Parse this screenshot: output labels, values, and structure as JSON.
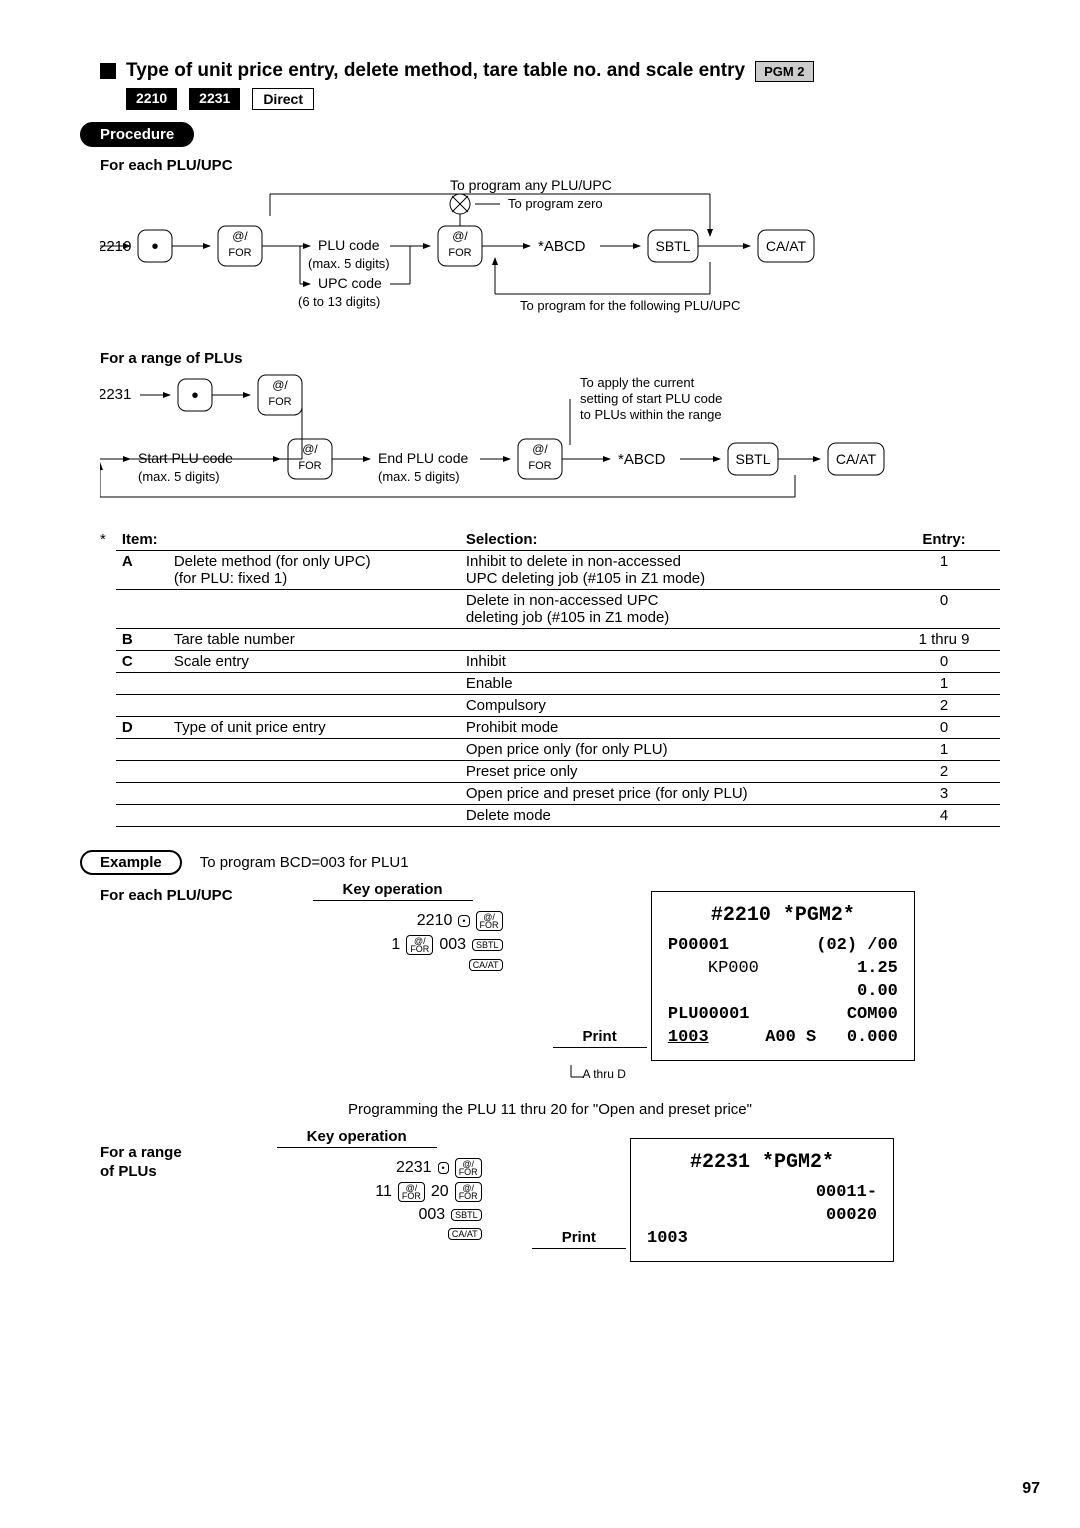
{
  "title": "Type of unit price entry, delete method, tare table no. and scale entry",
  "badges": {
    "pgm": "PGM 2",
    "c1": "2210",
    "c2": "2231",
    "direct": "Direct"
  },
  "labels": {
    "procedure": "Procedure",
    "forEach": "For each PLU/UPC",
    "forRange": "For a range of PLUs",
    "forRange2a": "For a range",
    "forRange2b": "of PLUs",
    "example": "Example",
    "keyop": "Key operation",
    "print": "Print"
  },
  "flow1": {
    "start": "2210",
    "dot": "•",
    "for": "@/",
    "forLabel": "FOR",
    "plu": "PLU code",
    "plu_sub": "(max. 5 digits)",
    "upc": "UPC code",
    "upc_sub": "(6 to 13 digits)",
    "anyLabel": "To program any PLU/UPC",
    "zeroLabel": "To program zero",
    "followLabel": "To program for the following PLU/UPC",
    "abcd": "*ABCD",
    "sbtl": "SBTL",
    "caat": "CA/AT"
  },
  "flow2": {
    "start": "2231",
    "startPlu": "Start PLU code",
    "startPlu_sub": "(max. 5 digits)",
    "endPlu": "End PLU code",
    "endPlu_sub": "(max. 5 digits)",
    "applyLabel1": "To apply the current",
    "applyLabel2": "setting of start PLU code",
    "applyLabel3": "to PLUs within the range",
    "abcd": "*ABCD",
    "sbtl": "SBTL",
    "caat": "CA/AT"
  },
  "table": {
    "headers": {
      "item": "Item:",
      "sel": "Selection:",
      "entry": "Entry:"
    },
    "rows": [
      {
        "id": "A",
        "item": "Delete method (for only UPC)",
        "item2": "(for PLU: fixed 1)",
        "sel": "Inhibit to delete in non-accessed\nUPC deleting job (#105 in Z1 mode)",
        "entry": "1",
        "line": true,
        "bold": true
      },
      {
        "id": "",
        "item": "",
        "item2": "",
        "sel": "Delete in non-accessed UPC\ndeleting job (#105 in Z1 mode)",
        "entry": "0",
        "line": true
      },
      {
        "id": "B",
        "item": "Tare table number",
        "sel": "",
        "entry": "1 thru 9",
        "line": true,
        "bold": true
      },
      {
        "id": "C",
        "item": "Scale entry",
        "sel": "Inhibit",
        "entry": "0",
        "line": true,
        "bold": true
      },
      {
        "id": "",
        "item": "",
        "sel": "Enable",
        "entry": "1",
        "line": true
      },
      {
        "id": "",
        "item": "",
        "sel": "Compulsory",
        "entry": "2",
        "line": true
      },
      {
        "id": "D",
        "item": "Type of unit price entry",
        "sel": "Prohibit mode",
        "entry": "0",
        "line": true,
        "bold": true
      },
      {
        "id": "",
        "item": "",
        "sel": "Open price only (for only PLU)",
        "entry": "1",
        "line": true
      },
      {
        "id": "",
        "item": "",
        "sel": "Preset price only",
        "entry": "2",
        "line": true
      },
      {
        "id": "",
        "item": "",
        "sel": "Open price and preset price (for only PLU)",
        "entry": "3",
        "line": true
      },
      {
        "id": "",
        "item": "",
        "sel": "Delete mode",
        "entry": "4",
        "line": true
      }
    ]
  },
  "example": {
    "title": "To program BCD=003 for PLU1",
    "keyop1": {
      "l1a": "2210",
      "l1b": "•",
      "l1c_top": "@/",
      "l1c_bot": "FOR",
      "l2a": "1",
      "l2b_top": "@/",
      "l2b_bot": "FOR",
      "l2c": "003",
      "l2d": "SBTL",
      "l3": "CA/AT"
    },
    "print1": {
      "l1": "#2210 *PGM2*",
      "l2a": "P00001",
      "l2b": "(02) /00",
      "l3a": "KP000",
      "l3b": "1.25",
      "l4": "0.00",
      "l5a": "PLU00001",
      "l5b": "COM00",
      "l6a": "1003",
      "l6b": "A00 S",
      "l6c": "0.000"
    },
    "note1": "A thru D",
    "midtext": "Programming the PLU 11 thru 20 for \"Open and preset price\"",
    "keyop2": {
      "l1a": "2231",
      "l1b": "•",
      "l1c_top": "@/",
      "l1c_bot": "FOR",
      "l2a": "11",
      "l2b_top": "@/",
      "l2b_bot": "FOR",
      "l2c": "20",
      "l2d_top": "@/",
      "l2d_bot": "FOR",
      "l3a": "003",
      "l3b": "SBTL",
      "l4": "CA/AT"
    },
    "print2": {
      "l1": "#2231 *PGM2*",
      "l2": "00011-",
      "l3": "00020",
      "l4": "1003"
    }
  },
  "page": "97"
}
